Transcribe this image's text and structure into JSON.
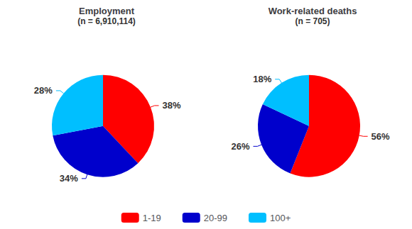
{
  "chart_data": [
    {
      "type": "pie",
      "title": "Employment",
      "subtitle": "(n = 6,910,114)",
      "categories": [
        "1-19",
        "20-99",
        "100+"
      ],
      "values": [
        38,
        34,
        28
      ],
      "value_labels": [
        "38%",
        "34%",
        "28%"
      ],
      "colors": [
        "#ff0000",
        "#0000cc",
        "#00bfff"
      ],
      "data_labels": true,
      "legend": "bottom"
    },
    {
      "type": "pie",
      "title": "Work-related deaths",
      "subtitle": "(n = 705)",
      "categories": [
        "1-19",
        "20-99",
        "100+"
      ],
      "values": [
        56,
        26,
        18
      ],
      "value_labels": [
        "56%",
        "26%",
        "18%"
      ],
      "colors": [
        "#ff0000",
        "#0000cc",
        "#00bfff"
      ],
      "data_labels": true,
      "legend": "bottom"
    }
  ]
}
